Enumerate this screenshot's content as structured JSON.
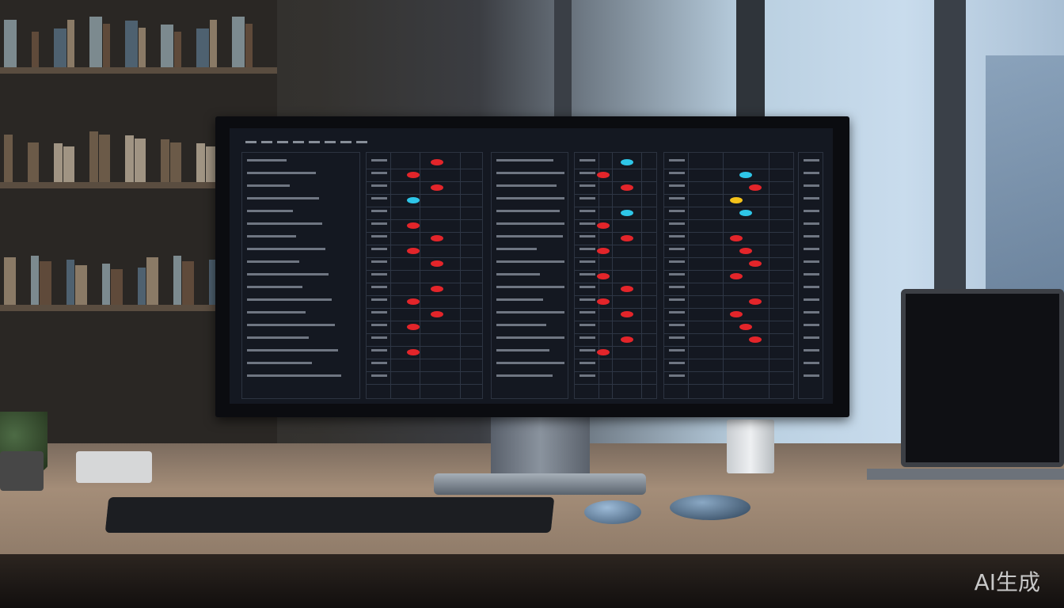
{
  "scene": {
    "watermark": "AI生成",
    "colors": {
      "screen_background": "#141821",
      "marker_red": "#e3252a",
      "marker_cyan": "#2ec6e8",
      "marker_yellow": "#f3c21a",
      "window_light": "#c9dced"
    }
  }
}
